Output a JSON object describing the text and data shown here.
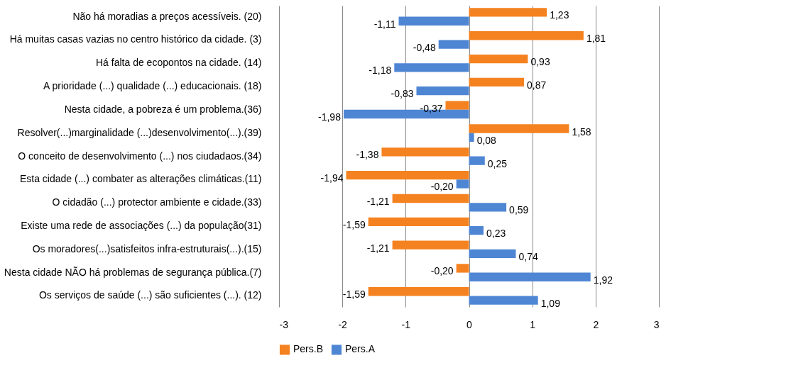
{
  "chart_data": {
    "type": "bar",
    "orientation": "horizontal",
    "categories": [
      "Não há moradias  a preços acessíveis. (20)",
      "Há muitas casas vazias  no centro histórico da cidade. (3)",
      "Há falta de ecopontos na cidade. (14)",
      "A prioridade  (...)  qualidade  (...)  educacionais. (18)",
      "Nesta cidade, a pobreza é um problema.(36)",
      "Resolver(...)marginalidade  (...)desenvolvimento(...).(39)",
      "O conceito de desenvolvimento  (...)  nos ciudadaos.(34)",
      "Esta cidade  (...)  combater as alterações climáticas.(11)",
      "O cidadão  (...)  protector  ambiente  e  cidade.(33)",
      "Existe uma  rede de associações  (...)  da população(31)",
      "Os moradores(...)satisfeitos  infra-estruturais(...).(15)",
      "Nesta cidade NÃO há problemas de segurança pública.(7)",
      "Os serviços de saúde  (...)  são suficientes  (...).  (12)"
    ],
    "series": [
      {
        "name": "Pers.B",
        "color": "#f58220",
        "values": [
          1.23,
          1.81,
          0.93,
          0.87,
          -0.37,
          1.58,
          -1.38,
          -1.94,
          -1.21,
          -1.59,
          -1.21,
          -0.2,
          -1.59
        ],
        "value_labels": [
          "1,23",
          "1,81",
          "0,93",
          "0,87",
          "-0,37",
          "1,58",
          "-1,38",
          "-1,94",
          "-1,21",
          "-1,59",
          "-1,21",
          "-0,20",
          "-1,59"
        ]
      },
      {
        "name": "Pers.A",
        "color": "#4f86d4",
        "values": [
          -1.11,
          -0.48,
          -1.18,
          -0.83,
          -1.98,
          0.08,
          0.25,
          -0.2,
          0.59,
          0.23,
          0.74,
          1.92,
          1.09
        ],
        "value_labels": [
          "-1,11",
          "-0,48",
          "-1,18",
          "-0,83",
          "-1,98",
          "0,08",
          "0,25",
          "-0,20",
          "0,59",
          "0,23",
          "0,74",
          "1,92",
          "1,09"
        ]
      }
    ],
    "xlim": [
      -3,
      3
    ],
    "xticks": [
      -3,
      -2,
      -1,
      0,
      1,
      2,
      3
    ],
    "grid": "x",
    "legend": "bottom"
  }
}
